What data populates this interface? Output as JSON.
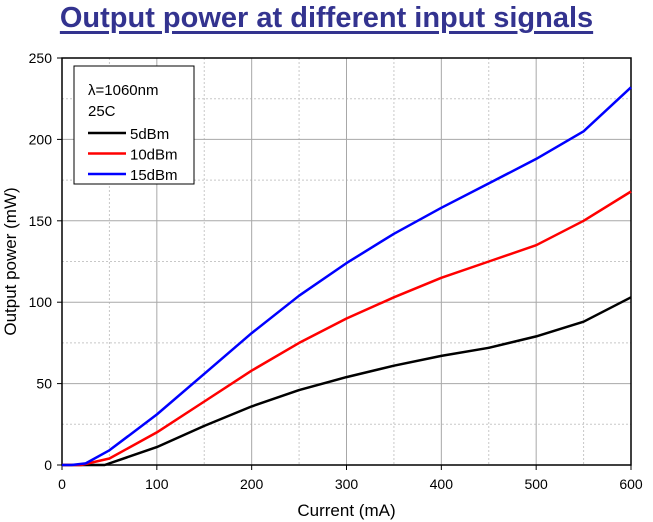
{
  "chart_data": {
    "type": "line",
    "title": "Output power at different input signals",
    "xlabel": "Current (mA)",
    "ylabel": "Output power (mW)",
    "xlim": [
      0,
      600
    ],
    "ylim": [
      0,
      250
    ],
    "xticks": [
      0,
      100,
      200,
      300,
      400,
      500,
      600
    ],
    "yticks": [
      0,
      50,
      100,
      150,
      200,
      250
    ],
    "grid": true,
    "legend_position": "top-left",
    "annotations": [
      "λ=1060nm",
      "25C"
    ],
    "series": [
      {
        "name": "5dBm",
        "color": "#000000",
        "x": [
          0,
          45,
          100,
          150,
          200,
          250,
          300,
          350,
          400,
          450,
          500,
          550,
          600
        ],
        "y": [
          0,
          0,
          11,
          24,
          36,
          46,
          54,
          61,
          67,
          72,
          79,
          88,
          103
        ]
      },
      {
        "name": "10dBm",
        "color": "#ff0000",
        "x": [
          0,
          20,
          50,
          100,
          150,
          200,
          250,
          300,
          350,
          400,
          450,
          500,
          550,
          600
        ],
        "y": [
          0,
          0,
          4,
          20,
          39,
          58,
          75,
          90,
          103,
          115,
          125,
          135,
          150,
          168
        ]
      },
      {
        "name": "15dBm",
        "color": "#0000ff",
        "x": [
          0,
          10,
          25,
          50,
          100,
          150,
          200,
          250,
          300,
          350,
          400,
          450,
          500,
          550,
          600
        ],
        "y": [
          0,
          0,
          1,
          9,
          31,
          56,
          81,
          104,
          124,
          142,
          158,
          173,
          188,
          205,
          232
        ]
      }
    ]
  }
}
